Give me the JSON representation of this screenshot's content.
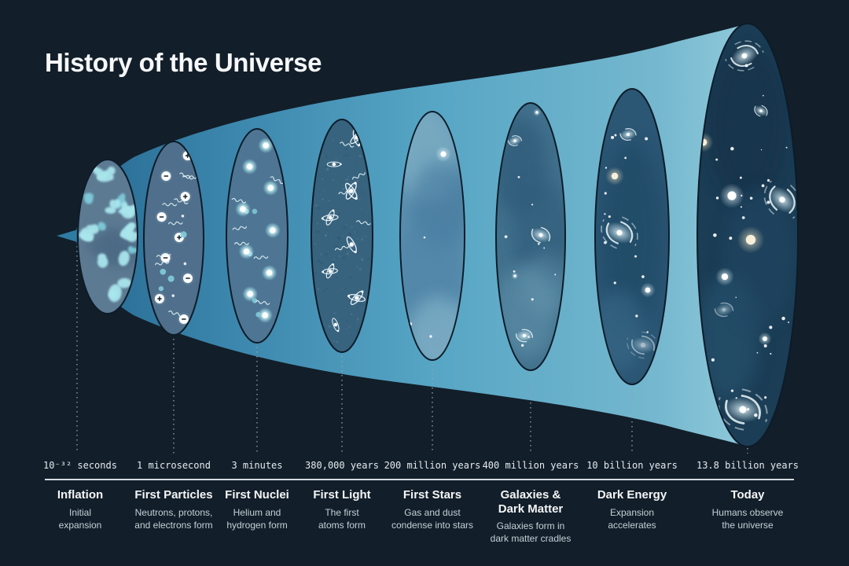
{
  "title": "History of the Universe",
  "colors": {
    "background": "#121e29",
    "funnel_gradient": [
      "#26688f",
      "#3882aa",
      "#57a6c5",
      "#74b7ce",
      "#9ed3e2"
    ],
    "funnel_tip": "#2e7ba3",
    "ellipse_outline": "#0d1c29",
    "rule": "#d3dade",
    "dash_line": "#93a5ae",
    "timestamp_text": "#e4ebef",
    "stage_title_text": "#f4f6f8",
    "stage_description_text": "#c6d0d7",
    "accent_cyan": "#a9e5ec",
    "warm_star": "#f7efd9"
  },
  "stages": [
    {
      "id": "inflation",
      "timestamp": "10⁻³² seconds",
      "title_lines": [
        "Inflation"
      ],
      "description_lines": [
        "Initial",
        "expansion"
      ],
      "motif": "quantum-blobs",
      "ellipse_fill": "#5d7a93"
    },
    {
      "id": "first-particles",
      "timestamp": "1 microsecond",
      "title_lines": [
        "First Particles"
      ],
      "description_lines": [
        "Neutrons, protons,",
        "and electrons form"
      ],
      "motif": "particles",
      "ellipse_fill": "#4f6f8c"
    },
    {
      "id": "first-nuclei",
      "timestamp": "3 minutes",
      "title_lines": [
        "First Nuclei"
      ],
      "description_lines": [
        "Helium and",
        "hydrogen form"
      ],
      "motif": "nuclei",
      "ellipse_fill": "#4e7694"
    },
    {
      "id": "first-light",
      "timestamp": "380,000 years",
      "title_lines": [
        "First Light"
      ],
      "description_lines": [
        "The first",
        "atoms form"
      ],
      "motif": "atoms",
      "ellipse_fill": "#38637f"
    },
    {
      "id": "first-stars",
      "timestamp": "200 million years",
      "title_lines": [
        "First Stars"
      ],
      "description_lines": [
        "Gas and dust",
        "condense into stars"
      ],
      "motif": "clouds-stars",
      "ellipse_fill": "#5d90b0"
    },
    {
      "id": "galaxies-dark-matter",
      "timestamp": "400 million years",
      "title_lines": [
        "Galaxies &",
        "Dark Matter"
      ],
      "description_lines": [
        "Galaxies form in",
        "dark matter cradles"
      ],
      "motif": "proto-galaxies",
      "ellipse_fill": "#41718d"
    },
    {
      "id": "dark-energy",
      "timestamp": "10 billion years",
      "title_lines": [
        "Dark Energy"
      ],
      "description_lines": [
        "Expansion",
        "accelerates"
      ],
      "motif": "galaxies",
      "ellipse_fill": "#2b5674"
    },
    {
      "id": "today",
      "timestamp": "13.8 billion years",
      "title_lines": [
        "Today"
      ],
      "description_lines": [
        "Humans observe",
        "the universe"
      ],
      "motif": "modern-universe",
      "ellipse_fill": "#1b3d55"
    }
  ]
}
